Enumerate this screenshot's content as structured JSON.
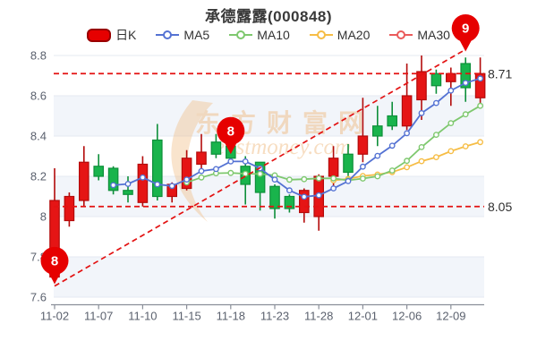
{
  "title": "承德露露(000848)",
  "legend": {
    "items": [
      {
        "label": "日K",
        "type": "candle",
        "color": "#e60000",
        "border": "#990000"
      },
      {
        "label": "MA5",
        "type": "line",
        "color": "#5472d3"
      },
      {
        "label": "MA10",
        "type": "line",
        "color": "#7ec86e"
      },
      {
        "label": "MA20",
        "type": "line",
        "color": "#f6bd45"
      },
      {
        "label": "MA30",
        "type": "line",
        "color": "#ea5b5b"
      }
    ]
  },
  "watermark": {
    "line1": "东方财富网",
    "line2": "eastmoney.com",
    "color": "#f0bd85"
  },
  "chart_data": {
    "type": "candlestick",
    "title": "承德露露(000848)",
    "ylim": [
      7.6,
      8.8
    ],
    "y_ticks": [
      "8.8",
      "8.6",
      "8.4",
      "8.2",
      "8",
      "7.8",
      "7.6"
    ],
    "x_label_every": 3,
    "up_color": "#e51515",
    "up_border": "#b30b0b",
    "down_color": "#19b44c",
    "down_border": "#0e8f3a",
    "band_color": "#f2f5fa",
    "grid_color": "#e4e9f2",
    "axis_color": "#8a8f99",
    "candles": [
      {
        "d": "11-02",
        "o": 7.7,
        "c": 8.08,
        "l": 7.67,
        "h": 8.24
      },
      {
        "d": "11-03",
        "o": 7.98,
        "c": 8.1,
        "l": 7.95,
        "h": 8.12
      },
      {
        "d": "11-04",
        "o": 8.08,
        "c": 8.27,
        "l": 8.05,
        "h": 8.35
      },
      {
        "d": "11-07",
        "o": 8.25,
        "c": 8.2,
        "l": 8.18,
        "h": 8.31
      },
      {
        "d": "11-08",
        "o": 8.24,
        "c": 8.13,
        "l": 8.11,
        "h": 8.25
      },
      {
        "d": "11-09",
        "o": 8.13,
        "c": 8.11,
        "l": 8.07,
        "h": 8.2
      },
      {
        "d": "11-10",
        "o": 8.07,
        "c": 8.26,
        "l": 8.05,
        "h": 8.3
      },
      {
        "d": "11-11",
        "o": 8.38,
        "c": 8.1,
        "l": 8.08,
        "h": 8.46
      },
      {
        "d": "11-14",
        "o": 8.1,
        "c": 8.16,
        "l": 8.07,
        "h": 8.17
      },
      {
        "d": "11-15",
        "o": 8.14,
        "c": 8.29,
        "l": 8.13,
        "h": 8.33
      },
      {
        "d": "11-16",
        "o": 8.26,
        "c": 8.32,
        "l": 8.24,
        "h": 8.41
      },
      {
        "d": "11-17",
        "o": 8.37,
        "c": 8.31,
        "l": 8.29,
        "h": 8.41
      },
      {
        "d": "11-18",
        "o": 8.35,
        "c": 8.29,
        "l": 8.27,
        "h": 8.37
      },
      {
        "d": "11-21",
        "o": 8.25,
        "c": 8.16,
        "l": 8.06,
        "h": 8.3
      },
      {
        "d": "11-22",
        "o": 8.27,
        "c": 8.12,
        "l": 8.03,
        "h": 8.27
      },
      {
        "d": "11-23",
        "o": 8.15,
        "c": 8.04,
        "l": 7.99,
        "h": 8.16
      },
      {
        "d": "11-24",
        "o": 8.1,
        "c": 8.04,
        "l": 8.02,
        "h": 8.11
      },
      {
        "d": "11-25",
        "o": 8.02,
        "c": 8.13,
        "l": 7.97,
        "h": 8.14
      },
      {
        "d": "11-28",
        "o": 8.0,
        "c": 8.2,
        "l": 7.93,
        "h": 8.21
      },
      {
        "d": "11-29",
        "o": 8.2,
        "c": 8.29,
        "l": 8.14,
        "h": 8.35
      },
      {
        "d": "11-30",
        "o": 8.31,
        "c": 8.22,
        "l": 8.18,
        "h": 8.36
      },
      {
        "d": "12-01",
        "o": 8.31,
        "c": 8.4,
        "l": 8.27,
        "h": 8.59
      },
      {
        "d": "12-02",
        "o": 8.45,
        "c": 8.4,
        "l": 8.35,
        "h": 8.55
      },
      {
        "d": "12-05",
        "o": 8.5,
        "c": 8.45,
        "l": 8.43,
        "h": 8.57
      },
      {
        "d": "12-06",
        "o": 8.45,
        "c": 8.6,
        "l": 8.43,
        "h": 8.76
      },
      {
        "d": "12-07",
        "o": 8.58,
        "c": 8.72,
        "l": 8.48,
        "h": 8.8
      },
      {
        "d": "12-08",
        "o": 8.71,
        "c": 8.65,
        "l": 8.61,
        "h": 8.73
      },
      {
        "d": "12-09",
        "o": 8.67,
        "c": 8.71,
        "l": 8.55,
        "h": 8.74
      },
      {
        "d": "12-12",
        "o": 8.76,
        "c": 8.64,
        "l": 8.57,
        "h": 8.79
      },
      {
        "d": "12-13",
        "o": 8.59,
        "c": 8.71,
        "l": 8.56,
        "h": 8.79
      }
    ],
    "series": [
      {
        "name": "MA5",
        "color": "#5472d3",
        "start_index": 4,
        "values": [
          8.156,
          8.162,
          8.194,
          8.16,
          8.152,
          8.184,
          8.226,
          8.236,
          8.274,
          8.274,
          8.24,
          8.184,
          8.13,
          8.098,
          8.106,
          8.14,
          8.176,
          8.248,
          8.302,
          8.352,
          8.414,
          8.514,
          8.564,
          8.626,
          8.664,
          8.686
        ]
      },
      {
        "name": "MA10",
        "color": "#7ec86e",
        "start_index": 9,
        "values": [
          8.17,
          8.194,
          8.215,
          8.217,
          8.213,
          8.212,
          8.205,
          8.183,
          8.186,
          8.19,
          8.19,
          8.18,
          8.189,
          8.2,
          8.229,
          8.277,
          8.345,
          8.406,
          8.464,
          8.508,
          8.55
        ]
      },
      {
        "name": "MA20",
        "color": "#f6bd45",
        "start_index": 19,
        "values": [
          8.18,
          8.187,
          8.202,
          8.209,
          8.221,
          8.245,
          8.275,
          8.295,
          8.325,
          8.349,
          8.37
        ]
      },
      {
        "name": "MA30",
        "color": "#ea5b5b",
        "start_index": 29,
        "values": []
      }
    ],
    "annotations": {
      "color": "#e31212",
      "hlines": [
        {
          "value": 8.71,
          "label": "8.71"
        },
        {
          "value": 8.05,
          "label": "8.05"
        }
      ],
      "trendline": {
        "from_index": 0,
        "from_value": 7.655,
        "to_index": 28,
        "to_value": 8.83
      },
      "pins": [
        {
          "index": 0,
          "value": 7.665,
          "label": "8"
        },
        {
          "index": 12,
          "value": 8.31,
          "label": "8"
        },
        {
          "index": 28,
          "value": 8.82,
          "label": "9"
        }
      ]
    }
  }
}
